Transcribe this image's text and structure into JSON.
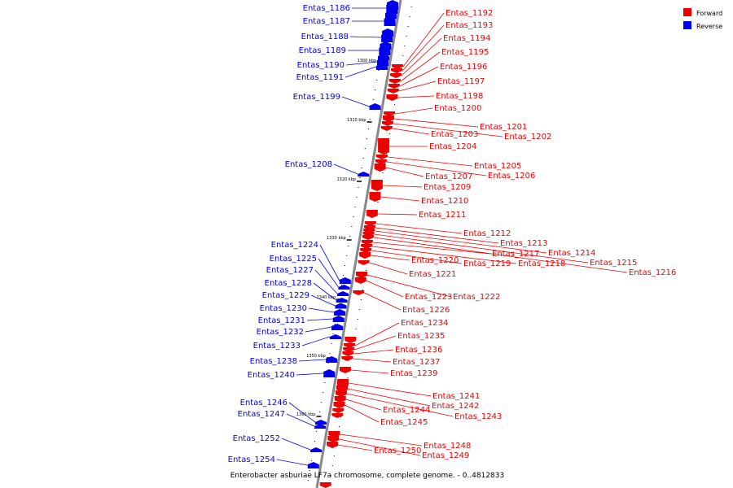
{
  "colors": {
    "forward": "#ee0000",
    "reverse": "#0000ee",
    "axis": "#888888"
  },
  "legend": [
    {
      "label": "Forward",
      "color": "#ee0000"
    },
    {
      "label": "Reverse",
      "color": "#0000ee"
    }
  ],
  "caption": "Enterobacter asburiae LF7a chromosome, complete genome. - 0..4812833",
  "kbp_ticks": [
    "1300 kbp",
    "1310 kbp",
    "1320 kbp",
    "1330 kbp",
    "1340 kbp",
    "1350 kbp",
    "1360 kbp"
  ],
  "reverse_genes": [
    "Entas_1186",
    "Entas_1187",
    "Entas_1188",
    "Entas_1189",
    "Entas_1190",
    "Entas_1191",
    "Entas_1199",
    "Entas_1208",
    "Entas_1224",
    "Entas_1225",
    "Entas_1227",
    "Entas_1228",
    "Entas_1229",
    "Entas_1230",
    "Entas_1231",
    "Entas_1232",
    "Entas_1233",
    "Entas_1238",
    "Entas_1240",
    "Entas_1246",
    "Entas_1247",
    "Entas_1252",
    "Entas_1254"
  ],
  "forward_genes": [
    "Entas_1192",
    "Entas_1193",
    "Entas_1194",
    "Entas_1195",
    "Entas_1196",
    "Entas_1197",
    "Entas_1198",
    "Entas_1200",
    "Entas_1201",
    "Entas_1202",
    "Entas_1203",
    "Entas_1204",
    "Entas_1205",
    "Entas_1206",
    "Entas_1207",
    "Entas_1209",
    "Entas_1210",
    "Entas_1211",
    "Entas_1212",
    "Entas_1213",
    "Entas_1214",
    "Entas_1215",
    "Entas_1216",
    "Entas_1217",
    "Entas_1218",
    "Entas_1219",
    "Entas_1220",
    "Entas_1221",
    "Entas_1222",
    "Entas_1223",
    "Entas_1226",
    "Entas_1234",
    "Entas_1235",
    "Entas_1236",
    "Entas_1237",
    "Entas_1239",
    "Entas_1241",
    "Entas_1242",
    "Entas_1243",
    "Entas_1244",
    "Entas_1245",
    "Entas_1248",
    "Entas_1249",
    "Entas_1250"
  ]
}
